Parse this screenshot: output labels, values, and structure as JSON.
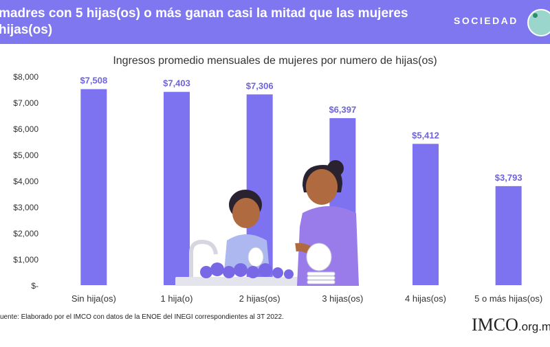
{
  "header": {
    "title": "madres con 5 hijas(os) o más ganan casi la mitad que las mujeres\nhijas(os)",
    "section": "SOCIEDAD",
    "badge_icon": "handshake-icon"
  },
  "colors": {
    "header_bg": "#7f77f0",
    "bar": "#7d72f0",
    "value_label": "#6e63d9",
    "illustration_shirt_child": "#aeb8f0",
    "illustration_shirt_mother": "#9a7bea",
    "illustration_skin": "#b06a40",
    "illustration_hair": "#2b2230",
    "foam": "#7968e6"
  },
  "chart_data": {
    "type": "bar",
    "title": "Ingresos promedio mensuales de mujeres por numero de hijas(os)",
    "categories": [
      "Sin hija(os)",
      "1 hija(o)",
      "2 hijas(os)",
      "3 hijas(os)",
      "4 hijas(os)",
      "5 o más hijas(os)"
    ],
    "values": [
      7508,
      7403,
      7306,
      6397,
      5412,
      3793
    ],
    "value_labels": [
      "$7,508",
      "$7,403",
      "$7,306",
      "$6,397",
      "$5,412",
      "$3,793"
    ],
    "y_ticks": [
      0,
      1000,
      2000,
      3000,
      4000,
      5000,
      6000,
      7000,
      8000
    ],
    "y_tick_labels": [
      "$-",
      "$1,000",
      "$2,000",
      "$3,000",
      "$4,000",
      "$5,000",
      "$6,000",
      "$7,000",
      "$8,000"
    ],
    "ylim": [
      0,
      8000
    ],
    "grid": false,
    "legend": "none"
  },
  "footer": {
    "source": "uente:  Elaborado por el IMCO con datos de la ENOE del INEGI  correspondientes al 3T 2022.",
    "logo_main": "IMCO",
    "logo_suffix": ".org.m"
  }
}
